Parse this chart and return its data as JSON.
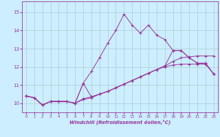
{
  "xlabel": "Windchill (Refroidissement éolien,°C)",
  "background_color": "#cceeff",
  "grid_color": "#aacccc",
  "line_color": "#993399",
  "xlim": [
    -0.5,
    23.5
  ],
  "ylim": [
    9.5,
    15.6
  ],
  "yticks": [
    10,
    11,
    12,
    13,
    14,
    15
  ],
  "xticks": [
    0,
    1,
    2,
    3,
    4,
    5,
    6,
    7,
    8,
    9,
    10,
    11,
    12,
    13,
    14,
    15,
    16,
    17,
    18,
    19,
    20,
    21,
    22,
    23
  ],
  "series": [
    [
      10.4,
      10.3,
      9.9,
      10.1,
      10.1,
      10.1,
      10.0,
      11.1,
      11.75,
      12.5,
      13.3,
      14.0,
      14.9,
      14.3,
      13.85,
      14.3,
      13.75,
      13.5,
      12.9,
      12.9,
      12.5,
      12.2,
      12.2,
      11.6
    ],
    [
      10.4,
      10.3,
      9.9,
      10.1,
      10.1,
      10.1,
      10.0,
      10.25,
      10.35,
      10.5,
      10.65,
      10.85,
      11.05,
      11.25,
      11.45,
      11.65,
      11.85,
      12.05,
      12.3,
      12.5,
      12.55,
      12.6,
      12.6,
      12.6
    ],
    [
      10.4,
      10.3,
      9.9,
      10.1,
      10.1,
      10.1,
      10.0,
      10.2,
      10.3,
      10.5,
      10.65,
      10.85,
      11.05,
      11.25,
      11.45,
      11.65,
      11.85,
      12.0,
      12.1,
      12.15,
      12.15,
      12.15,
      12.15,
      11.6
    ],
    [
      10.4,
      10.3,
      9.9,
      10.1,
      10.1,
      10.1,
      10.0,
      11.1,
      10.35,
      10.5,
      10.65,
      10.85,
      11.05,
      11.25,
      11.45,
      11.65,
      11.85,
      12.05,
      12.9,
      12.9,
      12.5,
      12.2,
      12.2,
      11.6
    ]
  ]
}
